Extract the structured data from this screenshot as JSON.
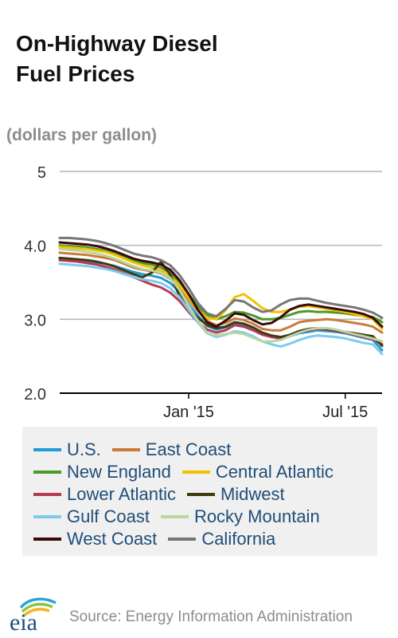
{
  "title_lines": [
    "On-Highway Diesel",
    "Fuel Prices"
  ],
  "units": "(dollars per gallon)",
  "source": "Source: Energy Information Administration",
  "logo_text": "eia",
  "chart_data": {
    "type": "line",
    "ylim": [
      2.0,
      5.0
    ],
    "yticks": [
      "2.0",
      "3.0",
      "4.0",
      "5"
    ],
    "ytick_values": [
      2.0,
      3.0,
      4.0,
      5.0
    ],
    "xlim": [
      0,
      35
    ],
    "xtick_labels": [
      "Jan '15",
      "Jul '15"
    ],
    "xtick_values": [
      14,
      31
    ],
    "legend_placement": "bottom",
    "x": [
      0,
      1,
      2,
      3,
      4,
      5,
      6,
      7,
      8,
      9,
      10,
      11,
      12,
      13,
      14,
      15,
      16,
      17,
      18,
      19,
      20,
      21,
      22,
      23,
      24,
      25,
      26,
      27,
      28,
      29,
      30,
      31,
      32,
      33,
      34,
      35
    ],
    "series": [
      {
        "name": "U.S.",
        "color": "#1f9bd7",
        "values": [
          3.82,
          3.81,
          3.8,
          3.79,
          3.77,
          3.75,
          3.72,
          3.68,
          3.64,
          3.61,
          3.59,
          3.56,
          3.49,
          3.37,
          3.2,
          3.05,
          2.91,
          2.86,
          2.89,
          2.94,
          2.92,
          2.87,
          2.8,
          2.77,
          2.73,
          2.77,
          2.81,
          2.83,
          2.85,
          2.84,
          2.83,
          2.81,
          2.78,
          2.75,
          2.72,
          2.58
        ]
      },
      {
        "name": "East Coast",
        "color": "#c97b3a",
        "values": [
          3.9,
          3.89,
          3.88,
          3.87,
          3.85,
          3.83,
          3.8,
          3.75,
          3.7,
          3.67,
          3.65,
          3.62,
          3.55,
          3.43,
          3.26,
          3.11,
          2.98,
          2.92,
          2.95,
          3.01,
          2.99,
          2.94,
          2.87,
          2.85,
          2.85,
          2.9,
          2.96,
          2.98,
          2.99,
          3.0,
          2.99,
          2.97,
          2.95,
          2.93,
          2.9,
          2.82
        ]
      },
      {
        "name": "New England",
        "color": "#4a9a2c",
        "values": [
          4.0,
          3.99,
          3.98,
          3.97,
          3.95,
          3.93,
          3.89,
          3.84,
          3.79,
          3.76,
          3.74,
          3.7,
          3.63,
          3.5,
          3.34,
          3.18,
          3.06,
          3.0,
          3.04,
          3.1,
          3.09,
          3.05,
          3.0,
          3.0,
          3.02,
          3.06,
          3.1,
          3.11,
          3.1,
          3.1,
          3.09,
          3.08,
          3.06,
          3.05,
          3.03,
          2.96
        ]
      },
      {
        "name": "Central Atlantic",
        "color": "#f2c200",
        "values": [
          3.98,
          3.97,
          3.96,
          3.95,
          3.93,
          3.91,
          3.87,
          3.82,
          3.77,
          3.73,
          3.7,
          3.66,
          3.59,
          3.46,
          3.29,
          3.13,
          3.02,
          3.0,
          3.12,
          3.3,
          3.34,
          3.25,
          3.15,
          3.1,
          3.1,
          3.13,
          3.17,
          3.18,
          3.16,
          3.14,
          3.12,
          3.1,
          3.07,
          3.04,
          3.0,
          2.87
        ]
      },
      {
        "name": "Lower Atlantic",
        "color": "#b63a54",
        "values": [
          3.8,
          3.79,
          3.78,
          3.76,
          3.74,
          3.71,
          3.67,
          3.62,
          3.57,
          3.52,
          3.47,
          3.43,
          3.36,
          3.25,
          3.1,
          2.96,
          2.86,
          2.82,
          2.85,
          2.92,
          2.9,
          2.85,
          2.79,
          2.76,
          2.74,
          2.78,
          2.82,
          2.85,
          2.87,
          2.86,
          2.84,
          2.82,
          2.79,
          2.76,
          2.73,
          2.66
        ]
      },
      {
        "name": "Midwest",
        "color": "#3f3a12",
        "values": [
          3.83,
          3.82,
          3.81,
          3.8,
          3.78,
          3.75,
          3.71,
          3.66,
          3.61,
          3.57,
          3.63,
          3.78,
          3.6,
          3.32,
          3.15,
          3.02,
          2.92,
          2.88,
          2.9,
          2.96,
          2.94,
          2.89,
          2.82,
          2.78,
          2.76,
          2.79,
          2.84,
          2.87,
          2.88,
          2.87,
          2.85,
          2.83,
          2.81,
          2.79,
          2.77,
          2.64
        ]
      },
      {
        "name": "Gulf Coast",
        "color": "#7ccbef",
        "values": [
          3.75,
          3.74,
          3.73,
          3.72,
          3.7,
          3.68,
          3.65,
          3.61,
          3.57,
          3.54,
          3.52,
          3.49,
          3.42,
          3.3,
          3.13,
          2.96,
          2.81,
          2.76,
          2.79,
          2.84,
          2.82,
          2.77,
          2.7,
          2.66,
          2.63,
          2.67,
          2.72,
          2.76,
          2.78,
          2.77,
          2.76,
          2.74,
          2.71,
          2.68,
          2.66,
          2.53
        ]
      },
      {
        "name": "Rocky Mountain",
        "color": "#b9d6a1",
        "values": [
          3.95,
          3.94,
          3.93,
          3.91,
          3.89,
          3.86,
          3.82,
          3.77,
          3.72,
          3.68,
          3.66,
          3.63,
          3.56,
          3.4,
          3.18,
          2.98,
          2.82,
          2.78,
          2.8,
          2.82,
          2.8,
          2.75,
          2.7,
          2.7,
          2.72,
          2.77,
          2.82,
          2.86,
          2.88,
          2.88,
          2.86,
          2.83,
          2.8,
          2.77,
          2.74,
          2.7
        ]
      },
      {
        "name": "West Coast",
        "color": "#3a0a0a",
        "values": [
          4.04,
          4.03,
          4.02,
          4.01,
          3.99,
          3.96,
          3.92,
          3.87,
          3.82,
          3.79,
          3.77,
          3.74,
          3.67,
          3.53,
          3.34,
          3.13,
          2.96,
          2.9,
          2.98,
          3.08,
          3.06,
          2.99,
          2.93,
          2.95,
          3.03,
          3.13,
          3.18,
          3.2,
          3.18,
          3.16,
          3.14,
          3.12,
          3.1,
          3.07,
          3.02,
          2.9
        ]
      },
      {
        "name": "California",
        "color": "#767676",
        "values": [
          4.1,
          4.1,
          4.09,
          4.08,
          4.06,
          4.03,
          3.99,
          3.94,
          3.89,
          3.86,
          3.84,
          3.8,
          3.73,
          3.6,
          3.42,
          3.22,
          3.08,
          3.04,
          3.14,
          3.26,
          3.24,
          3.16,
          3.1,
          3.12,
          3.2,
          3.26,
          3.28,
          3.28,
          3.25,
          3.22,
          3.2,
          3.18,
          3.16,
          3.13,
          3.09,
          3.02
        ]
      }
    ]
  },
  "legend_rows": [
    [
      0,
      1
    ],
    [
      2,
      3
    ],
    [
      4,
      5
    ],
    [
      6,
      7
    ],
    [
      8,
      9
    ]
  ]
}
